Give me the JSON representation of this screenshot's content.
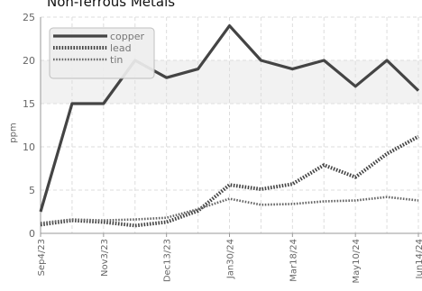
{
  "chart_data": {
    "type": "line",
    "title": "Non-ferrous Metals",
    "xlabel": "",
    "ylabel": "ppm",
    "ylim": [
      0,
      25
    ],
    "yticks": [
      0,
      5,
      10,
      15,
      20,
      25
    ],
    "x": [
      "Sep4/23",
      "Oct4/23",
      "Nov3/23",
      "Nov24/23",
      "Dec13/23",
      "Jan6/24",
      "Jan30/24",
      "Feb22/24",
      "Mar18/24",
      "Apr15/24",
      "May10/24",
      "Jun3/24",
      "Jun14/24"
    ],
    "xtick_labels": [
      "Sep4/23",
      "Nov3/23",
      "Dec13/23",
      "Jan30/24",
      "Mar18/24",
      "May10/24",
      "Jun14/24"
    ],
    "series": [
      {
        "name": "copper",
        "color": "#444444",
        "style": "solid",
        "values": [
          2.5,
          15,
          15,
          20,
          18,
          19,
          24,
          20,
          19,
          20,
          17,
          20,
          16.5
        ]
      },
      {
        "name": "lead",
        "color": "#444444",
        "style": "dotted",
        "values": [
          1.0,
          1.5,
          1.3,
          0.9,
          1.3,
          2.6,
          5.6,
          5.1,
          5.7,
          7.9,
          6.5,
          9.2,
          11.2
        ]
      },
      {
        "name": "tin",
        "color": "#666666",
        "style": "dashed",
        "values": [
          1.2,
          1.6,
          1.5,
          1.6,
          1.8,
          2.8,
          4.0,
          3.3,
          3.4,
          3.7,
          3.8,
          4.2,
          3.8
        ]
      }
    ],
    "grid": true,
    "legend_position": "top-left",
    "band": {
      "range": [
        15,
        20
      ],
      "color": "#f2f2f2"
    }
  }
}
